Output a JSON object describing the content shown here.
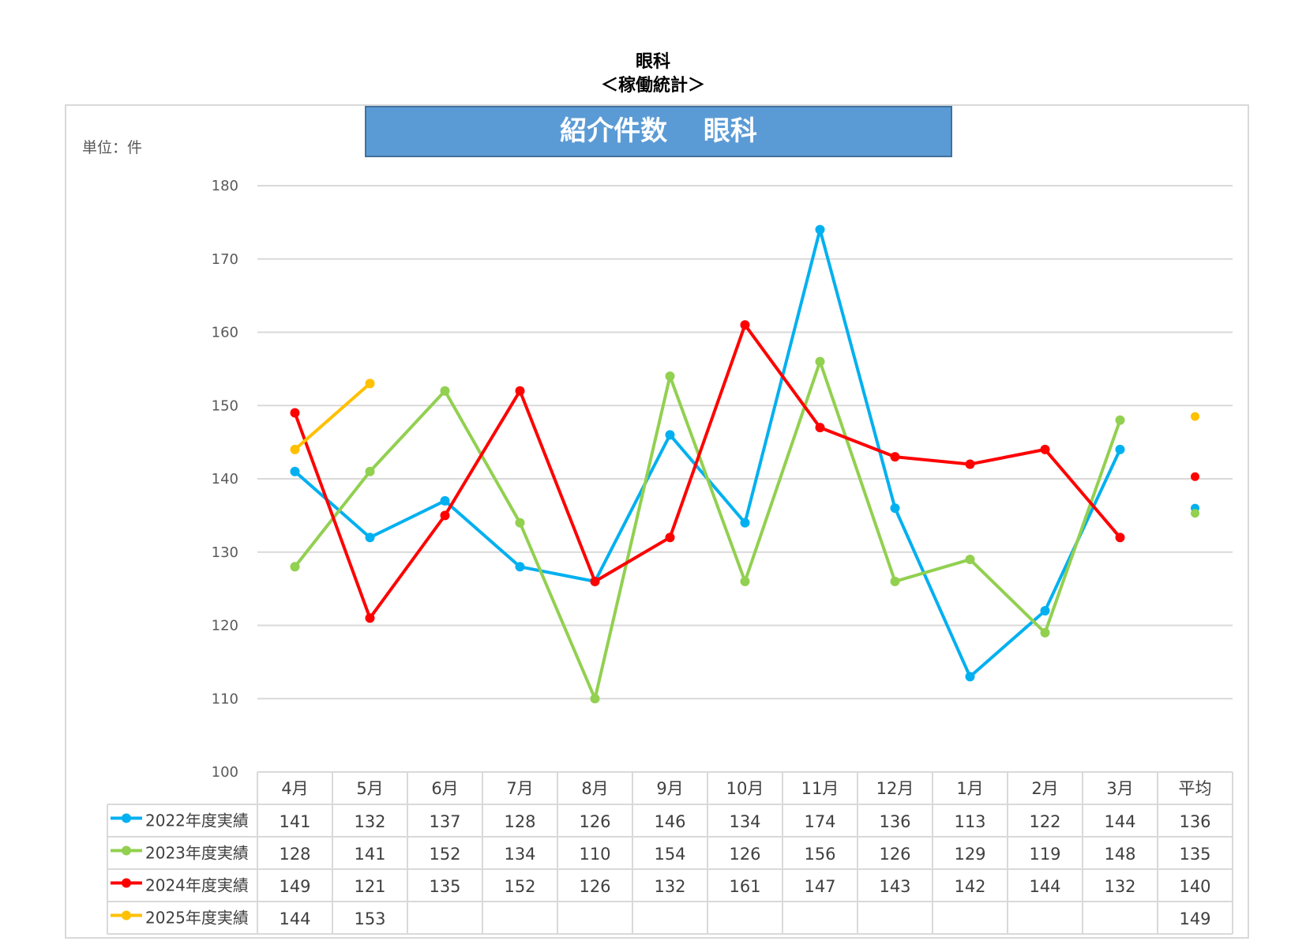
{
  "header": {
    "line1": "眼科",
    "line2": "＜稼働統計＞"
  },
  "banner_title": "紹介件数　 眼科",
  "unit_label": "単位：件",
  "chart_data": {
    "type": "line",
    "title": "紹介件数　 眼科",
    "ylim": [
      100,
      180
    ],
    "yticks": [
      100,
      110,
      120,
      130,
      140,
      150,
      160,
      170,
      180
    ],
    "grid": true,
    "categories": [
      "4月",
      "5月",
      "6月",
      "7月",
      "8月",
      "9月",
      "10月",
      "11月",
      "12月",
      "1月",
      "2月",
      "3月"
    ],
    "average_label": "平均",
    "series": [
      {
        "name": "2022年度実績",
        "color": "#00b0f0",
        "values": [
          141,
          132,
          137,
          128,
          126,
          146,
          134,
          174,
          136,
          113,
          122,
          144
        ],
        "average": 136,
        "average_plot": 136
      },
      {
        "name": "2023年度実績",
        "color": "#92d050",
        "values": [
          128,
          141,
          152,
          134,
          110,
          154,
          126,
          156,
          126,
          129,
          119,
          148
        ],
        "average": 135,
        "average_plot": 135.3
      },
      {
        "name": "2024年度実績",
        "color": "#ff0000",
        "values": [
          149,
          121,
          135,
          152,
          126,
          132,
          161,
          147,
          143,
          142,
          144,
          132
        ],
        "average": 140,
        "average_plot": 140.3
      },
      {
        "name": "2025年度実績",
        "color": "#ffc000",
        "values": [
          144,
          153,
          null,
          null,
          null,
          null,
          null,
          null,
          null,
          null,
          null,
          null
        ],
        "average": 149,
        "average_plot": 148.5
      }
    ]
  }
}
